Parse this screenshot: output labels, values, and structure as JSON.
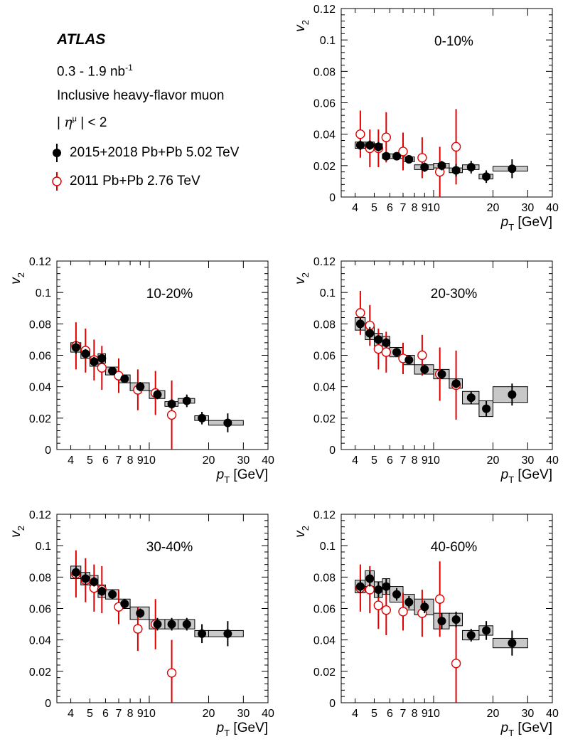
{
  "legend": {
    "experiment": "ATLAS",
    "lumi_prefix": "0.3 - 1.9 nb",
    "lumi_exp": "-1",
    "description": "Inclusive heavy-flavor muon",
    "eta_prefix": "| ",
    "eta_symbol": "η",
    "eta_sup": "μ",
    "eta_suffix": " | < 2",
    "entries": [
      {
        "label": "2015+2018 Pb+Pb 5.02 TeV",
        "marker": "filled-circle",
        "color": "#000000"
      },
      {
        "label": "2011 Pb+Pb 2.76 TeV",
        "marker": "open-circle",
        "color": "#e00000"
      }
    ]
  },
  "colors": {
    "new": "#000000",
    "old": "#e00000",
    "syst_fill": "#c8c8c8"
  },
  "axis": {
    "xlabel_main": "p",
    "xlabel_sub": "T",
    "xlabel_unit": " [GeV]",
    "ylabel_main": "v",
    "ylabel_sub": "2",
    "xscale": "log",
    "xlim": [
      3.4,
      40
    ],
    "ylim": [
      0,
      0.12
    ],
    "x_major_ticks": [
      {
        "v": 4,
        "l": "4"
      },
      {
        "v": 5,
        "l": "5"
      },
      {
        "v": 6,
        "l": "6"
      },
      {
        "v": 7,
        "l": "7"
      },
      {
        "v": 8,
        "l": "8"
      },
      {
        "v": 9,
        "l": "9"
      },
      {
        "v": 10,
        "l": "10"
      },
      {
        "v": 20,
        "l": "20"
      },
      {
        "v": 30,
        "l": "30"
      },
      {
        "v": 40,
        "l": "40"
      }
    ],
    "y_ticks": [
      {
        "v": 0,
        "l": "0"
      },
      {
        "v": 0.02,
        "l": "0.02"
      },
      {
        "v": 0.04,
        "l": "0.04"
      },
      {
        "v": 0.06,
        "l": "0.06"
      },
      {
        "v": 0.08,
        "l": "0.08"
      },
      {
        "v": 0.1,
        "l": "0.1"
      },
      {
        "v": 0.12,
        "l": "0.12"
      }
    ]
  },
  "chart_data": [
    {
      "type": "scatter",
      "label": "0-10%",
      "xlabel": "p_T [GeV]",
      "ylabel": "v_2",
      "xlim": [
        3.4,
        40
      ],
      "ylim": [
        0,
        0.12
      ],
      "xscale": "log",
      "series": [
        {
          "name": "2015+2018 Pb+Pb 5.02 TeV",
          "points": [
            {
              "x": 4.25,
              "y": 0.033,
              "err": 0.003,
              "xlo": 4.0,
              "xhi": 4.5,
              "sys": 0.002
            },
            {
              "x": 4.75,
              "y": 0.033,
              "err": 0.003,
              "xlo": 4.5,
              "xhi": 5.0,
              "sys": 0.002
            },
            {
              "x": 5.25,
              "y": 0.032,
              "err": 0.003,
              "xlo": 5.0,
              "xhi": 5.5,
              "sys": 0.002
            },
            {
              "x": 5.75,
              "y": 0.026,
              "err": 0.002,
              "xlo": 5.5,
              "xhi": 6.0,
              "sys": 0.0015
            },
            {
              "x": 6.5,
              "y": 0.026,
              "err": 0.002,
              "xlo": 6.0,
              "xhi": 7.0,
              "sys": 0.0015
            },
            {
              "x": 7.5,
              "y": 0.024,
              "err": 0.002,
              "xlo": 7.0,
              "xhi": 8.0,
              "sys": 0.0015
            },
            {
              "x": 9.0,
              "y": 0.019,
              "err": 0.003,
              "xlo": 8.0,
              "xhi": 10.0,
              "sys": 0.0015
            },
            {
              "x": 11.0,
              "y": 0.02,
              "err": 0.003,
              "xlo": 10.0,
              "xhi": 12.0,
              "sys": 0.0015
            },
            {
              "x": 13.0,
              "y": 0.017,
              "err": 0.004,
              "xlo": 12.0,
              "xhi": 14.0,
              "sys": 0.0015
            },
            {
              "x": 15.5,
              "y": 0.019,
              "err": 0.004,
              "xlo": 14.0,
              "xhi": 17.0,
              "sys": 0.0015
            },
            {
              "x": 18.5,
              "y": 0.013,
              "err": 0.004,
              "xlo": 17.0,
              "xhi": 20.0,
              "sys": 0.0015
            },
            {
              "x": 25.0,
              "y": 0.018,
              "err": 0.006,
              "xlo": 20.0,
              "xhi": 30.0,
              "sys": 0.0015
            }
          ]
        },
        {
          "name": "2011 Pb+Pb 2.76 TeV",
          "points": [
            {
              "x": 4.25,
              "y": 0.04,
              "err": 0.015
            },
            {
              "x": 4.75,
              "y": 0.031,
              "err": 0.012
            },
            {
              "x": 5.25,
              "y": 0.031,
              "err": 0.012
            },
            {
              "x": 5.75,
              "y": 0.038,
              "err": 0.016
            },
            {
              "x": 7.0,
              "y": 0.029,
              "err": 0.012
            },
            {
              "x": 8.75,
              "y": 0.025,
              "err": 0.013
            },
            {
              "x": 10.75,
              "y": 0.016,
              "err": 0.016
            },
            {
              "x": 13.0,
              "y": 0.032,
              "err": 0.024
            }
          ]
        }
      ]
    },
    {
      "type": "scatter",
      "label": "10-20%",
      "xlabel": "p_T [GeV]",
      "ylabel": "v_2",
      "xlim": [
        3.4,
        40
      ],
      "ylim": [
        0,
        0.12
      ],
      "xscale": "log",
      "series": [
        {
          "name": "2015+2018 Pb+Pb 5.02 TeV",
          "points": [
            {
              "x": 4.25,
              "y": 0.065,
              "err": 0.004,
              "xlo": 4.0,
              "xhi": 4.5,
              "sys": 0.003
            },
            {
              "x": 4.75,
              "y": 0.061,
              "err": 0.003,
              "xlo": 4.5,
              "xhi": 5.0,
              "sys": 0.003
            },
            {
              "x": 5.25,
              "y": 0.056,
              "err": 0.003,
              "xlo": 5.0,
              "xhi": 5.5,
              "sys": 0.003
            },
            {
              "x": 5.75,
              "y": 0.058,
              "err": 0.003,
              "xlo": 5.5,
              "xhi": 6.0,
              "sys": 0.003
            },
            {
              "x": 6.5,
              "y": 0.05,
              "err": 0.002,
              "xlo": 6.0,
              "xhi": 7.0,
              "sys": 0.0025
            },
            {
              "x": 7.5,
              "y": 0.045,
              "err": 0.002,
              "xlo": 7.0,
              "xhi": 8.0,
              "sys": 0.0025
            },
            {
              "x": 9.0,
              "y": 0.04,
              "err": 0.003,
              "xlo": 8.0,
              "xhi": 10.0,
              "sys": 0.0025
            },
            {
              "x": 11.0,
              "y": 0.035,
              "err": 0.003,
              "xlo": 10.0,
              "xhi": 12.0,
              "sys": 0.0025
            },
            {
              "x": 13.0,
              "y": 0.029,
              "err": 0.003,
              "xlo": 12.0,
              "xhi": 14.0,
              "sys": 0.0015
            },
            {
              "x": 15.5,
              "y": 0.031,
              "err": 0.004,
              "xlo": 14.0,
              "xhi": 17.0,
              "sys": 0.0015
            },
            {
              "x": 18.5,
              "y": 0.02,
              "err": 0.004,
              "xlo": 17.0,
              "xhi": 20.0,
              "sys": 0.0015
            },
            {
              "x": 25.0,
              "y": 0.017,
              "err": 0.006,
              "xlo": 20.0,
              "xhi": 30.0,
              "sys": 0.0015
            }
          ]
        },
        {
          "name": "2011 Pb+Pb 2.76 TeV",
          "points": [
            {
              "x": 4.25,
              "y": 0.066,
              "err": 0.015
            },
            {
              "x": 4.75,
              "y": 0.063,
              "err": 0.014
            },
            {
              "x": 5.25,
              "y": 0.057,
              "err": 0.013
            },
            {
              "x": 5.75,
              "y": 0.052,
              "err": 0.014
            },
            {
              "x": 7.0,
              "y": 0.047,
              "err": 0.011
            },
            {
              "x": 8.75,
              "y": 0.038,
              "err": 0.013
            },
            {
              "x": 10.75,
              "y": 0.036,
              "err": 0.014
            },
            {
              "x": 13.0,
              "y": 0.022,
              "err": 0.022
            }
          ]
        }
      ]
    },
    {
      "type": "scatter",
      "label": "20-30%",
      "xlabel": "p_T [GeV]",
      "ylabel": "v_2",
      "xlim": [
        3.4,
        40
      ],
      "ylim": [
        0,
        0.12
      ],
      "xscale": "log",
      "series": [
        {
          "name": "2015+2018 Pb+Pb 5.02 TeV",
          "points": [
            {
              "x": 4.25,
              "y": 0.08,
              "err": 0.004,
              "xlo": 4.0,
              "xhi": 4.5,
              "sys": 0.004
            },
            {
              "x": 4.75,
              "y": 0.074,
              "err": 0.004,
              "xlo": 4.5,
              "xhi": 5.0,
              "sys": 0.004
            },
            {
              "x": 5.25,
              "y": 0.07,
              "err": 0.003,
              "xlo": 5.0,
              "xhi": 5.5,
              "sys": 0.004
            },
            {
              "x": 5.75,
              "y": 0.068,
              "err": 0.003,
              "xlo": 5.5,
              "xhi": 6.0,
              "sys": 0.004
            },
            {
              "x": 6.5,
              "y": 0.062,
              "err": 0.002,
              "xlo": 6.0,
              "xhi": 7.0,
              "sys": 0.003
            },
            {
              "x": 7.5,
              "y": 0.057,
              "err": 0.002,
              "xlo": 7.0,
              "xhi": 8.0,
              "sys": 0.003
            },
            {
              "x": 9.0,
              "y": 0.051,
              "err": 0.003,
              "xlo": 8.0,
              "xhi": 10.0,
              "sys": 0.003
            },
            {
              "x": 11.0,
              "y": 0.048,
              "err": 0.003,
              "xlo": 10.0,
              "xhi": 12.0,
              "sys": 0.003
            },
            {
              "x": 13.0,
              "y": 0.042,
              "err": 0.003,
              "xlo": 12.0,
              "xhi": 14.0,
              "sys": 0.003
            },
            {
              "x": 15.5,
              "y": 0.033,
              "err": 0.004,
              "xlo": 14.0,
              "xhi": 17.0,
              "sys": 0.004
            },
            {
              "x": 18.5,
              "y": 0.026,
              "err": 0.005,
              "xlo": 17.0,
              "xhi": 20.0,
              "sys": 0.005
            },
            {
              "x": 25.0,
              "y": 0.035,
              "err": 0.007,
              "xlo": 20.0,
              "xhi": 30.0,
              "sys": 0.005
            }
          ]
        },
        {
          "name": "2011 Pb+Pb 2.76 TeV",
          "points": [
            {
              "x": 4.25,
              "y": 0.087,
              "err": 0.014
            },
            {
              "x": 4.75,
              "y": 0.079,
              "err": 0.013
            },
            {
              "x": 5.25,
              "y": 0.064,
              "err": 0.013
            },
            {
              "x": 5.75,
              "y": 0.062,
              "err": 0.013
            },
            {
              "x": 7.0,
              "y": 0.058,
              "err": 0.01
            },
            {
              "x": 8.75,
              "y": 0.06,
              "err": 0.013
            },
            {
              "x": 10.75,
              "y": 0.048,
              "err": 0.017
            },
            {
              "x": 13.0,
              "y": 0.041,
              "err": 0.022
            }
          ]
        }
      ]
    },
    {
      "type": "scatter",
      "label": "30-40%",
      "xlabel": "p_T [GeV]",
      "ylabel": "v_2",
      "xlim": [
        3.4,
        40
      ],
      "ylim": [
        0,
        0.12
      ],
      "xscale": "log",
      "series": [
        {
          "name": "2015+2018 Pb+Pb 5.02 TeV",
          "points": [
            {
              "x": 4.25,
              "y": 0.083,
              "err": 0.004,
              "xlo": 4.0,
              "xhi": 4.5,
              "sys": 0.004
            },
            {
              "x": 4.75,
              "y": 0.079,
              "err": 0.004,
              "xlo": 4.5,
              "xhi": 5.0,
              "sys": 0.004
            },
            {
              "x": 5.25,
              "y": 0.077,
              "err": 0.003,
              "xlo": 5.0,
              "xhi": 5.5,
              "sys": 0.004
            },
            {
              "x": 5.75,
              "y": 0.071,
              "err": 0.003,
              "xlo": 5.5,
              "xhi": 6.0,
              "sys": 0.004
            },
            {
              "x": 6.5,
              "y": 0.069,
              "err": 0.003,
              "xlo": 6.0,
              "xhi": 7.0,
              "sys": 0.003
            },
            {
              "x": 7.5,
              "y": 0.063,
              "err": 0.003,
              "xlo": 7.0,
              "xhi": 8.0,
              "sys": 0.003
            },
            {
              "x": 9.0,
              "y": 0.057,
              "err": 0.003,
              "xlo": 8.0,
              "xhi": 10.0,
              "sys": 0.004
            },
            {
              "x": 11.0,
              "y": 0.05,
              "err": 0.004,
              "xlo": 10.0,
              "xhi": 12.0,
              "sys": 0.003
            },
            {
              "x": 13.0,
              "y": 0.05,
              "err": 0.004,
              "xlo": 12.0,
              "xhi": 14.0,
              "sys": 0.003
            },
            {
              "x": 15.5,
              "y": 0.05,
              "err": 0.004,
              "xlo": 14.0,
              "xhi": 17.0,
              "sys": 0.003
            },
            {
              "x": 18.5,
              "y": 0.044,
              "err": 0.006,
              "xlo": 17.0,
              "xhi": 20.0,
              "sys": 0.002
            },
            {
              "x": 25.0,
              "y": 0.044,
              "err": 0.008,
              "xlo": 20.0,
              "xhi": 30.0,
              "sys": 0.002
            }
          ]
        },
        {
          "name": "2011 Pb+Pb 2.76 TeV",
          "points": [
            {
              "x": 4.25,
              "y": 0.082,
              "err": 0.015
            },
            {
              "x": 4.75,
              "y": 0.078,
              "err": 0.014
            },
            {
              "x": 5.25,
              "y": 0.073,
              "err": 0.015
            },
            {
              "x": 5.75,
              "y": 0.072,
              "err": 0.015
            },
            {
              "x": 7.0,
              "y": 0.061,
              "err": 0.011
            },
            {
              "x": 8.75,
              "y": 0.047,
              "err": 0.014
            },
            {
              "x": 10.75,
              "y": 0.05,
              "err": 0.016
            },
            {
              "x": 13.0,
              "y": 0.019,
              "err": 0.021
            }
          ]
        }
      ]
    },
    {
      "type": "scatter",
      "label": "40-60%",
      "xlabel": "p_T [GeV]",
      "ylabel": "v_2",
      "xlim": [
        3.4,
        40
      ],
      "ylim": [
        0,
        0.12
      ],
      "xscale": "log",
      "series": [
        {
          "name": "2015+2018 Pb+Pb 5.02 TeV",
          "points": [
            {
              "x": 4.25,
              "y": 0.074,
              "err": 0.004,
              "xlo": 4.0,
              "xhi": 4.5,
              "sys": 0.004
            },
            {
              "x": 4.75,
              "y": 0.079,
              "err": 0.005,
              "xlo": 4.5,
              "xhi": 5.0,
              "sys": 0.005
            },
            {
              "x": 5.25,
              "y": 0.072,
              "err": 0.005,
              "xlo": 5.0,
              "xhi": 5.5,
              "sys": 0.005
            },
            {
              "x": 5.75,
              "y": 0.074,
              "err": 0.005,
              "xlo": 5.5,
              "xhi": 6.0,
              "sys": 0.005
            },
            {
              "x": 6.5,
              "y": 0.069,
              "err": 0.004,
              "xlo": 6.0,
              "xhi": 7.0,
              "sys": 0.005
            },
            {
              "x": 7.5,
              "y": 0.064,
              "err": 0.004,
              "xlo": 7.0,
              "xhi": 8.0,
              "sys": 0.005
            },
            {
              "x": 9.0,
              "y": 0.061,
              "err": 0.004,
              "xlo": 8.0,
              "xhi": 10.0,
              "sys": 0.005
            },
            {
              "x": 11.0,
              "y": 0.052,
              "err": 0.005,
              "xlo": 10.0,
              "xhi": 12.0,
              "sys": 0.005
            },
            {
              "x": 13.0,
              "y": 0.053,
              "err": 0.005,
              "xlo": 12.0,
              "xhi": 14.0,
              "sys": 0.004
            },
            {
              "x": 15.5,
              "y": 0.043,
              "err": 0.004,
              "xlo": 14.0,
              "xhi": 17.0,
              "sys": 0.003
            },
            {
              "x": 18.5,
              "y": 0.046,
              "err": 0.006,
              "xlo": 17.0,
              "xhi": 20.0,
              "sys": 0.003
            },
            {
              "x": 25.0,
              "y": 0.038,
              "err": 0.008,
              "xlo": 20.0,
              "xhi": 30.0,
              "sys": 0.003
            }
          ]
        },
        {
          "name": "2011 Pb+Pb 2.76 TeV",
          "points": [
            {
              "x": 4.25,
              "y": 0.073,
              "err": 0.015
            },
            {
              "x": 4.75,
              "y": 0.072,
              "err": 0.015
            },
            {
              "x": 5.25,
              "y": 0.062,
              "err": 0.015
            },
            {
              "x": 5.75,
              "y": 0.059,
              "err": 0.016
            },
            {
              "x": 7.0,
              "y": 0.058,
              "err": 0.012
            },
            {
              "x": 8.75,
              "y": 0.057,
              "err": 0.015
            },
            {
              "x": 10.75,
              "y": 0.066,
              "err": 0.024
            },
            {
              "x": 13.0,
              "y": 0.025,
              "err": 0.025
            }
          ]
        }
      ]
    }
  ]
}
